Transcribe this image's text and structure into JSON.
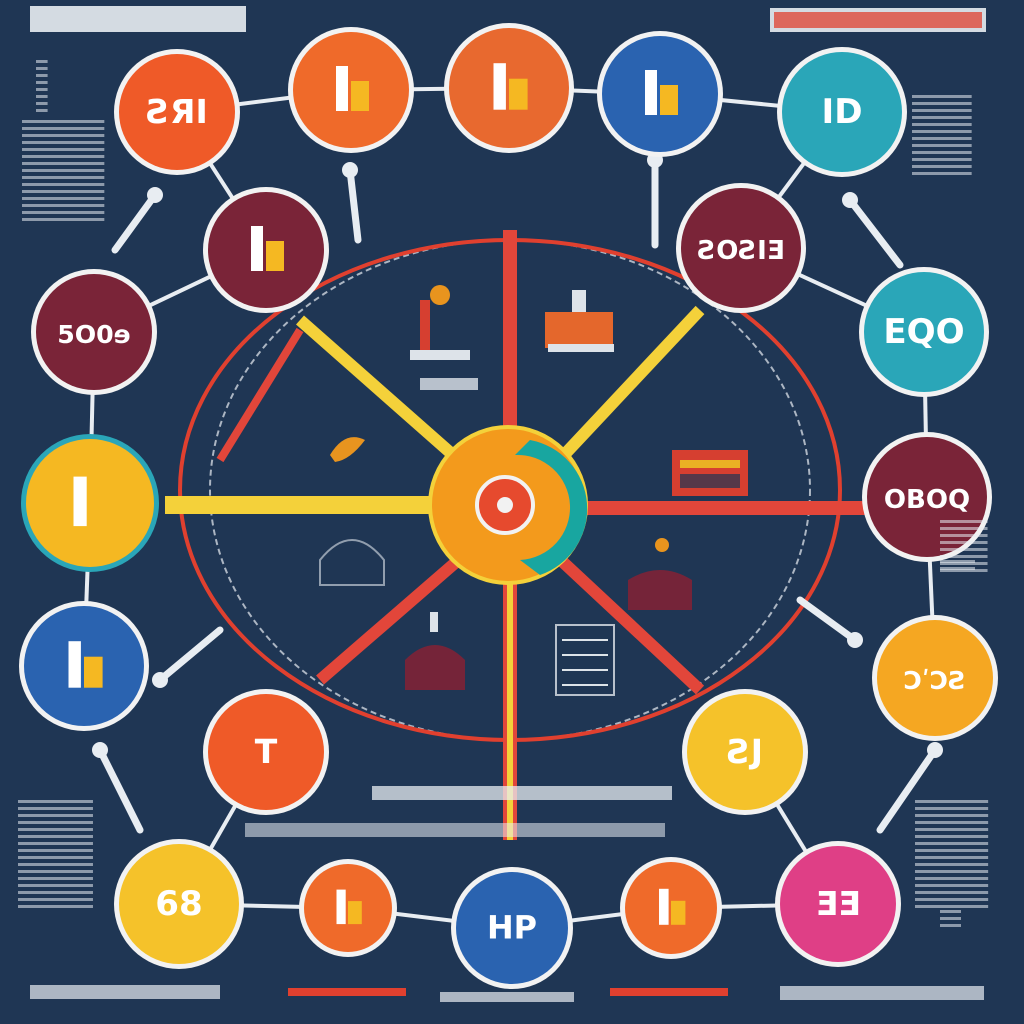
{
  "colors": {
    "background": "#1f3654",
    "orange": "#ef6a2a",
    "red": "#e0402f",
    "maroon": "#7a2438",
    "teal": "#2aa6b8",
    "blue": "#2a63b0",
    "yellow": "#f5b822",
    "pink": "#df3f86",
    "spoke_yellow": "#f4d13a",
    "spoke_red": "#e2463a",
    "line_white": "#e8edf2"
  },
  "nodes": [
    {
      "id": "n1",
      "label": "ƧЯI",
      "color": "#ef5a28",
      "ring": "#f2f2f2"
    },
    {
      "id": "n2",
      "label": "",
      "color": "#ef6a2a",
      "ring": "#f2f2f2",
      "icon": "figure-icon"
    },
    {
      "id": "n3",
      "label": "",
      "color": "#e8692f",
      "ring": "#f2f2f2",
      "icon": "machine-icon"
    },
    {
      "id": "n4",
      "label": "",
      "color": "#2a63b0",
      "ring": "#f2f2f2",
      "icon": "tool-icon"
    },
    {
      "id": "n5",
      "label": "ID",
      "color": "#2aa6b8",
      "ring": "#f2f2f2"
    },
    {
      "id": "n6",
      "label": "",
      "color": "#7a2438",
      "ring": "#f2f2f2",
      "icon": "temple-icon"
    },
    {
      "id": "n7",
      "label": "ƧOƧIƎ",
      "color": "#7a2438",
      "ring": "#f2f2f2"
    },
    {
      "id": "n8",
      "label": "5O0ɘ",
      "color": "#7a2438",
      "ring": "#f2f2f2"
    },
    {
      "id": "n9",
      "label": "EQO",
      "color": "#2aa6b8",
      "ring": "#f2f2f2"
    },
    {
      "id": "n10",
      "label": "",
      "color": "#f5b822",
      "ring": "#2aa6b8",
      "icon": "beak-icon"
    },
    {
      "id": "n11",
      "label": "OBOQ",
      "color": "#7a2438",
      "ring": "#f2f2f2"
    },
    {
      "id": "n12",
      "label": "",
      "color": "#2a63b0",
      "ring": "#f2f2f2",
      "icon": "bar-icon"
    },
    {
      "id": "n13",
      "label": "ƆʹƆƧ",
      "color": "#f5a722",
      "ring": "#f2f2f2"
    },
    {
      "id": "n14",
      "label": "T",
      "color": "#ef5a28",
      "ring": "#f2f2f2"
    },
    {
      "id": "n15",
      "label": "ƧJ",
      "color": "#f5c22a",
      "ring": "#f2f2f2"
    },
    {
      "id": "n16",
      "label": "68",
      "color": "#f5c22a",
      "ring": "#f2f2f2"
    },
    {
      "id": "n17",
      "label": "",
      "color": "#ef6a2a",
      "ring": "#f2f2f2",
      "icon": "bowl-icon"
    },
    {
      "id": "n18",
      "label": "HP",
      "color": "#2a63b0",
      "ring": "#f2f2f2"
    },
    {
      "id": "n19",
      "label": "",
      "color": "#ef6a2a",
      "ring": "#f2f2f2",
      "icon": "planet-icon"
    },
    {
      "id": "n20",
      "label": "ƎƎ",
      "color": "#df3f86",
      "ring": "#f2f2f2"
    }
  ],
  "hub": {
    "color_outer": "#f39a1c",
    "color_inner": "#e64a2e",
    "accent": "#18a6a0"
  }
}
